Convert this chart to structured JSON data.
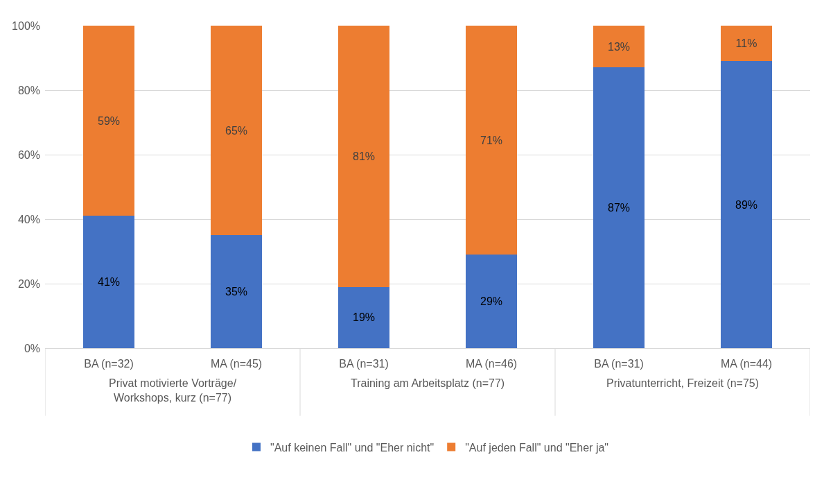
{
  "chart_data": {
    "type": "bar",
    "stacked": true,
    "categories": [
      "BA (n=32)",
      "MA (n=45)",
      "BA (n=31)",
      "MA (n=46)",
      "BA (n=31)",
      "MA (n=44)"
    ],
    "series": [
      {
        "name": "\"Auf keinen Fall\" und \"Eher nicht\"",
        "color": "#4472c4",
        "values": [
          41,
          35,
          19,
          29,
          87,
          89
        ],
        "value_labels": [
          "41%",
          "35%",
          "19%",
          "29%",
          "87%",
          "89%"
        ]
      },
      {
        "name": "\"Auf jeden Fall\" und \"Eher ja\"",
        "color": "#ed7d31",
        "values": [
          59,
          65,
          81,
          71,
          13,
          11
        ],
        "value_labels": [
          "59%",
          "65%",
          "81%",
          "71%",
          "13%",
          "11%"
        ]
      }
    ],
    "annotations": [
      "Privat motivierte Vorträge/ Workshops, kurz (n=77)",
      "Training am Arbeitsplatz (n=77)",
      "Privatunterricht, Freizeit (n=75)"
    ],
    "ylim": [
      0,
      100
    ],
    "yticks": [
      {
        "value": 0,
        "label": "0%"
      },
      {
        "value": 20,
        "label": "20%"
      },
      {
        "value": 40,
        "label": "40%"
      },
      {
        "value": 60,
        "label": "60%"
      },
      {
        "value": 80,
        "label": "80%"
      },
      {
        "value": 100,
        "label": "100%"
      }
    ],
    "grid": "y",
    "legend": "bottom"
  }
}
